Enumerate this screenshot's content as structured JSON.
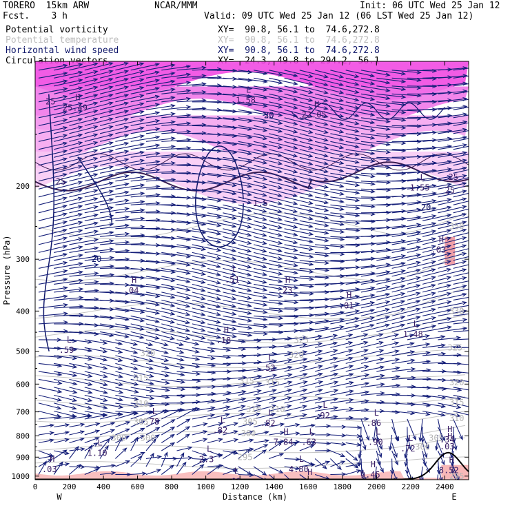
{
  "header": {
    "model": "TORERO  15km ARW",
    "org": "NCAR/MMM",
    "init": "Init: 06 UTC Wed 25 Jan 12",
    "fcst": "Fcst.    3 h",
    "valid": "Valid: 09 UTC Wed 25 Jan 12 (06 LST Wed 25 Jan 12)",
    "fields": [
      {
        "name": "Potential vorticity",
        "xy": "XY=  90.8, 56.1 to  74.6,272.8",
        "color": "#000000"
      },
      {
        "name": "Potential temperature",
        "xy": "XY=  90.8, 56.1 to  74.6,272.8",
        "color": "#bdbdbd"
      },
      {
        "name": "Horizontal wind speed",
        "xy": "XY=  90.8, 56.1 to  74.6,272.8",
        "color": "#10186a"
      },
      {
        "name": "Circulation vectors",
        "xy": "XY=  24.3, 49.8 to 294.2, 56.1",
        "color": "#000000"
      }
    ]
  },
  "chart_data": {
    "type": "cross-section",
    "xlabel": "Distance (km)",
    "ylabel": "Pressure (hPa)",
    "x_ticks": [
      0,
      200,
      400,
      600,
      800,
      1000,
      1200,
      1400,
      1600,
      1800,
      2000,
      2200,
      2400
    ],
    "y_ticks": [
      200,
      300,
      400,
      500,
      600,
      700,
      800,
      900,
      1000
    ],
    "xlim": [
      0,
      2540
    ],
    "ylim": [
      1020,
      100
    ],
    "y_scale": "log",
    "left_end": "W",
    "right_end": "E",
    "pv_shading_color": "#e060d0",
    "terrain_color": "#000000",
    "low_pv_color": "#f8b8b8",
    "extrema_labels": [
      {
        "type": "H",
        "value": "25.49",
        "x": 250,
        "p": 125
      },
      {
        "type": "H",
        "value": "22.05",
        "x": 1650,
        "p": 130
      },
      {
        "type": "L",
        "value": "1.58",
        "x": 1250,
        "p": 120
      },
      {
        "type": "L",
        "value": "1.55",
        "x": 2270,
        "p": 195
      },
      {
        "type": "H",
        "value": ".03",
        "x": 2380,
        "p": 275
      },
      {
        "type": "H",
        "value": ".04",
        "x": 580,
        "p": 345
      },
      {
        "type": "H",
        "value": ".23",
        "x": 1480,
        "p": 345
      },
      {
        "type": "H",
        "value": ".01",
        "x": 1840,
        "p": 375
      },
      {
        "type": "L",
        "value": ".51",
        "x": 1170,
        "p": 325
      },
      {
        "type": "H",
        "value": ".18",
        "x": 1120,
        "p": 455
      },
      {
        "type": "L",
        "value": "1.48",
        "x": 2230,
        "p": 440
      },
      {
        "type": "L",
        "value": ".59",
        "x": 200,
        "p": 480
      },
      {
        "type": "L",
        "value": ".52",
        "x": 1380,
        "p": 530
      },
      {
        "type": "L",
        "value": ".92",
        "x": 1700,
        "p": 690
      },
      {
        "type": "L",
        "value": ".82",
        "x": 1380,
        "p": 720
      },
      {
        "type": "L",
        "value": ".86",
        "x": 2000,
        "p": 720
      },
      {
        "type": "L",
        "value": ".78",
        "x": 700,
        "p": 715
      },
      {
        "type": "L",
        "value": ".82",
        "x": 1100,
        "p": 750
      },
      {
        "type": "H",
        "value": "7.84",
        "x": 1470,
        "p": 800
      },
      {
        "type": "L",
        "value": ".63",
        "x": 1620,
        "p": 800
      },
      {
        "type": "L",
        "value": ".90",
        "x": 2010,
        "p": 800
      },
      {
        "type": "L",
        "value": ".72",
        "x": 2200,
        "p": 830
      },
      {
        "type": "H",
        "value": ".34",
        "x": 2430,
        "p": 790
      },
      {
        "type": "H",
        "value": ".03",
        "x": 2430,
        "p": 820
      },
      {
        "type": "L",
        "value": "1.10",
        "x": 380,
        "p": 850
      },
      {
        "type": "L",
        "value": "2.3",
        "x": 1020,
        "p": 880
      },
      {
        "type": "L",
        "value": "4.80",
        "x": 1560,
        "p": 930
      },
      {
        "type": "H",
        "value": ".03",
        "x": 100,
        "p": 930
      },
      {
        "type": "H",
        "value": "9.45",
        "x": 1980,
        "p": 960
      },
      {
        "type": "H",
        "value": "6.83",
        "x": 1610,
        "p": 1000
      },
      {
        "type": "L",
        "value": ".01",
        "x": 1180,
        "p": 995
      },
      {
        "type": "H",
        "value": "8.52",
        "x": 2440,
        "p": 935
      }
    ],
    "pv_contour_labels": [
      {
        "value": "25",
        "x": 90,
        "p": 125
      },
      {
        "value": "25",
        "x": 150,
        "p": 195
      },
      {
        "value": "20",
        "x": 1370,
        "p": 135
      },
      {
        "value": "25",
        "x": 2430,
        "p": 205
      },
      {
        "value": "1.5",
        "x": 1320,
        "p": 220
      },
      {
        "value": "20",
        "x": 2290,
        "p": 225
      },
      {
        "value": "25",
        "x": 2450,
        "p": 190
      }
    ],
    "theta_contour_labels": [
      {
        "value": "350",
        "x": 2470,
        "p": 250
      },
      {
        "value": "330",
        "x": 2470,
        "p": 400
      },
      {
        "value": "325",
        "x": 1560,
        "p": 470
      },
      {
        "value": "325",
        "x": 2460,
        "p": 490
      },
      {
        "value": "320",
        "x": 660,
        "p": 505
      },
      {
        "value": "320",
        "x": 1530,
        "p": 510
      },
      {
        "value": "315",
        "x": 620,
        "p": 580
      },
      {
        "value": "315",
        "x": 1240,
        "p": 590
      },
      {
        "value": "315",
        "x": 1390,
        "p": 595
      },
      {
        "value": "320",
        "x": 2470,
        "p": 595
      },
      {
        "value": "310",
        "x": 620,
        "p": 670
      },
      {
        "value": "310",
        "x": 1280,
        "p": 690
      },
      {
        "value": "310",
        "x": 1420,
        "p": 690
      },
      {
        "value": "315",
        "x": 2470,
        "p": 665
      },
      {
        "value": "305",
        "x": 620,
        "p": 740
      },
      {
        "value": "305",
        "x": 1260,
        "p": 740
      },
      {
        "value": "310",
        "x": 2470,
        "p": 725
      },
      {
        "value": "300",
        "x": 490,
        "p": 810
      },
      {
        "value": "300",
        "x": 660,
        "p": 810
      },
      {
        "value": "300",
        "x": 1250,
        "p": 790
      },
      {
        "value": "305",
        "x": 2350,
        "p": 810
      },
      {
        "value": "300",
        "x": 2270,
        "p": 850
      },
      {
        "value": "295",
        "x": 1230,
        "p": 900
      },
      {
        "value": "295",
        "x": 2470,
        "p": 1000
      }
    ],
    "wind_contour_labels": [
      {
        "value": "20",
        "x": 360,
        "p": 300
      },
      {
        "value": "20",
        "x": 2290,
        "p": 225
      },
      {
        "value": "30",
        "x": 1370,
        "p": 135
      }
    ]
  }
}
